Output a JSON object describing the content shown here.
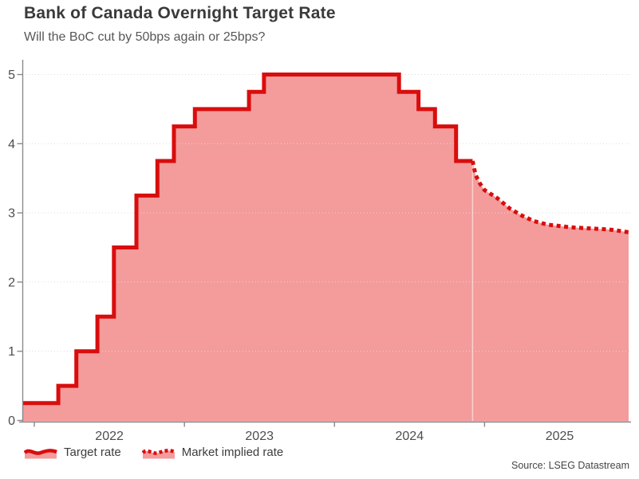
{
  "title": "Bank of Canada Overnight Target Rate",
  "subtitle": "Will the BoC cut by 50bps again or 25bps?",
  "source": "Source: LSEG Datastream",
  "legend": {
    "items": [
      {
        "label": "Target rate",
        "swatch": "solid-wave-swatch"
      },
      {
        "label": "Market implied rate",
        "swatch": "dotted-wave-swatch"
      }
    ]
  },
  "colors": {
    "line": "#d90d0d",
    "fill": "#f49b9b",
    "axis": "#8a8a8a",
    "grid": "#dcdcdc",
    "tick_text": "#4d4d4d",
    "title_text": "#3a3a3a",
    "subtitle_text": "#575757"
  },
  "chart_data": {
    "type": "line",
    "title": "Bank of Canada Overnight Target Rate",
    "subtitle": "Will the BoC cut by 50bps again or 25bps?",
    "xlabel": "",
    "ylabel": "",
    "x_unit": "decimal_year",
    "xlim": [
      2021.92,
      2025.96
    ],
    "ylim": [
      0,
      5
    ],
    "yticks": [
      0,
      1,
      2,
      3,
      4,
      5
    ],
    "x_years": [
      2022,
      2023,
      2024,
      2025
    ],
    "grid": "horizontal-dotted",
    "legend_position": "bottom-left",
    "series": [
      {
        "name": "Target rate",
        "style": "step-solid",
        "points": [
          [
            2021.92,
            0.25
          ],
          [
            2022.16,
            0.5
          ],
          [
            2022.28,
            1.0
          ],
          [
            2022.42,
            1.5
          ],
          [
            2022.53,
            2.5
          ],
          [
            2022.68,
            3.25
          ],
          [
            2022.82,
            3.75
          ],
          [
            2022.93,
            4.25
          ],
          [
            2023.07,
            4.5
          ],
          [
            2023.43,
            4.75
          ],
          [
            2023.53,
            5.0
          ],
          [
            2024.43,
            4.75
          ],
          [
            2024.56,
            4.5
          ],
          [
            2024.67,
            4.25
          ],
          [
            2024.81,
            3.75
          ],
          [
            2024.92,
            3.75
          ]
        ]
      },
      {
        "name": "Market implied rate",
        "style": "dotted",
        "points": [
          [
            2024.92,
            3.75
          ],
          [
            2024.94,
            3.55
          ],
          [
            2024.97,
            3.42
          ],
          [
            2025.0,
            3.33
          ],
          [
            2025.08,
            3.22
          ],
          [
            2025.17,
            3.06
          ],
          [
            2025.25,
            2.96
          ],
          [
            2025.33,
            2.88
          ],
          [
            2025.42,
            2.83
          ],
          [
            2025.5,
            2.81
          ],
          [
            2025.58,
            2.79
          ],
          [
            2025.67,
            2.78
          ],
          [
            2025.75,
            2.77
          ],
          [
            2025.83,
            2.76
          ],
          [
            2025.9,
            2.74
          ],
          [
            2025.96,
            2.72
          ]
        ]
      }
    ]
  }
}
